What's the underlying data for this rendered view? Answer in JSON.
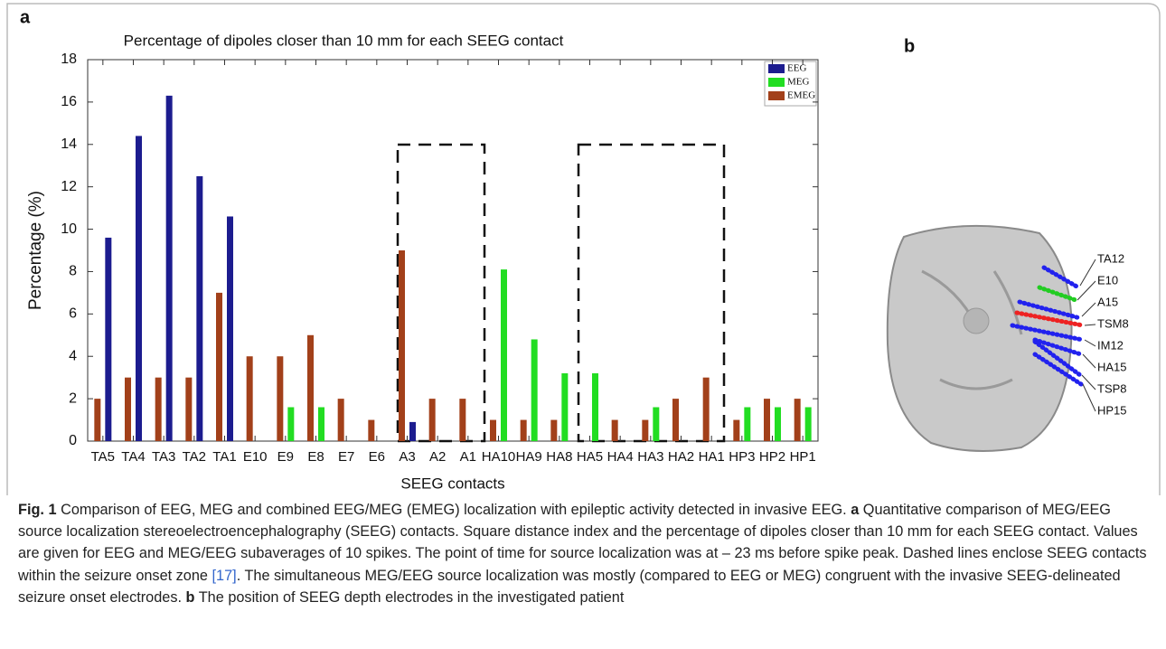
{
  "panel_labels": [
    "a",
    "b"
  ],
  "chart_data": {
    "type": "bar",
    "title": "Percentage of dipoles closer than 10 mm for each SEEG contact",
    "x_label": "SEEG  contacts",
    "y_label": "Percentage  (%)",
    "categories": [
      "TA5",
      "TA4",
      "TA3",
      "TA2",
      "TA1",
      "E10",
      "E9",
      "E8",
      "E7",
      "E6",
      "A3",
      "A2",
      "A1",
      "HA10",
      "HA9",
      "HA8",
      "HA5",
      "HA4",
      "HA3",
      "HA2",
      "HA1",
      "HP3",
      "HP2",
      "HP1"
    ],
    "series": [
      {
        "name": "EEG",
        "color": "#1c1c8f",
        "values": [
          9.6,
          14.4,
          16.3,
          12.5,
          10.6,
          0,
          0,
          0,
          0,
          0,
          0.9,
          0,
          0,
          0,
          0,
          0,
          0,
          0,
          0,
          0,
          0,
          0,
          0,
          0
        ]
      },
      {
        "name": "MEG",
        "color": "#22dd22",
        "values": [
          0,
          0,
          0,
          0,
          0,
          0,
          1.6,
          1.6,
          0,
          0,
          0,
          0,
          0,
          8.1,
          4.8,
          3.2,
          3.2,
          0,
          1.6,
          0,
          0,
          1.6,
          1.6,
          1.6
        ]
      },
      {
        "name": "EMEG",
        "color": "#a2401a",
        "values": [
          2,
          3,
          3,
          3,
          7,
          4,
          4,
          5,
          2,
          1,
          9,
          2,
          2,
          1,
          1,
          1,
          0,
          1,
          1,
          2,
          3,
          1,
          2,
          2
        ]
      }
    ],
    "ylim": [
      0,
      18
    ],
    "yticks": [
      0,
      2,
      4,
      6,
      8,
      10,
      12,
      14,
      16,
      18
    ],
    "legend": "upper right"
  },
  "brain_labels": [
    "TA12",
    "E10",
    "A15",
    "TSM8",
    "IM12",
    "HA15",
    "TSP8",
    "HP15"
  ],
  "caption": {
    "fig_label": "Fig. 1",
    "title": "Comparison of EEG, MEG and combined EEG/MEG (EMEG) localization with epileptic activity detected in invasive EEG.",
    "part_a_label": "a",
    "part_a_text": "Quantitative comparison of MEG/EEG source localization stereoelectroencephalography (SEEG) contacts. Square distance index and the percentage of dipoles closer than 10 mm for each SEEG contact. Values are given for EEG and MEG/EEG subaverages of 10 spikes. The point of time for source localization was at – 23 ms before spike peak. Dashed lines enclose SEEG contacts within the seizure onset zone",
    "ref": "[17]",
    "part_a_text_end": ". The simultaneous MEG/EEG source localization was mostly (compared to EEG or MEG) congruent with the invasive SEEG-delineated seizure onset electrodes.",
    "part_b_label": "b",
    "part_b_text": "The position of SEEG depth electrodes in the investigated patient"
  }
}
